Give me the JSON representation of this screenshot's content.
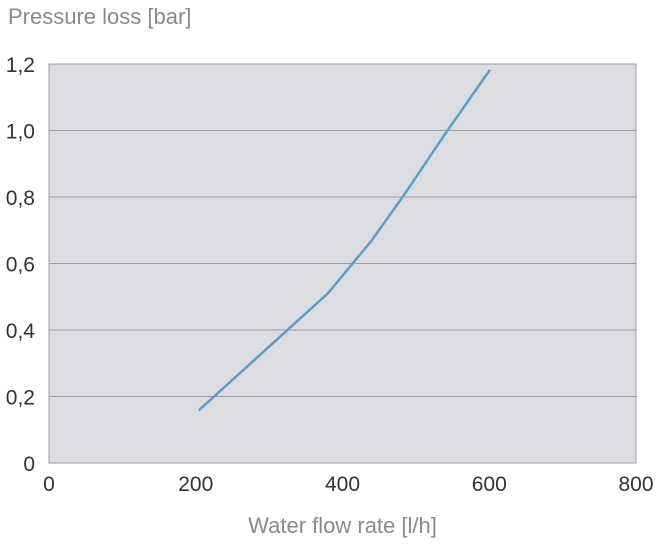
{
  "chart_data": {
    "type": "line",
    "ylabel": "Pressure loss [bar]",
    "xlabel": "Water flow rate [l/h]",
    "xlim": [
      0,
      800
    ],
    "ylim": [
      0,
      1.2
    ],
    "x_ticks": [
      "0",
      "200",
      "400",
      "600",
      "800"
    ],
    "x_tick_values": [
      0,
      200,
      400,
      600,
      800
    ],
    "y_ticks": [
      "0",
      "0,2",
      "0,4",
      "0,6",
      "0,8",
      "1,0",
      "1,2"
    ],
    "y_tick_values": [
      0,
      0.2,
      0.4,
      0.6,
      0.8,
      1.0,
      1.2
    ],
    "grid": "horizontal",
    "series": [
      {
        "color": "#5b9fc8",
        "x": [
          205,
          260,
          320,
          380,
          440,
          485,
          540,
          600
        ],
        "y": [
          0.16,
          0.27,
          0.39,
          0.51,
          0.67,
          0.81,
          0.99,
          1.18
        ]
      }
    ],
    "plot_background": "#dcdde0",
    "grid_color": "#9e9e9e"
  }
}
